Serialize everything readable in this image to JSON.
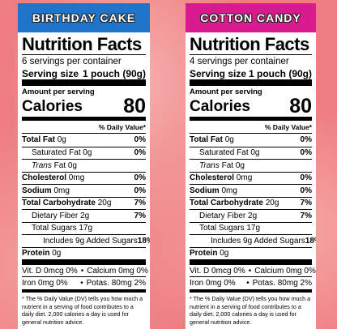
{
  "labels": [
    {
      "banner": "BIRTHDAY CAKE",
      "banner_color": "#1e74c8",
      "title": "Nutrition Facts",
      "servings": "6 servings per container",
      "serving_size_label": "Serving size",
      "serving_size_value": "1 pouch (90g)",
      "amount_per_serving": "Amount per serving",
      "calories_label": "Calories",
      "calories_value": "80",
      "daily_value_header": "% Daily Value*",
      "rows": [
        {
          "name": "Total Fat",
          "amount": "0g",
          "dv": "0%",
          "bold": true,
          "indent": 0
        },
        {
          "name": "Saturated Fat",
          "amount": "0g",
          "dv": "0%",
          "bold": false,
          "indent": 1
        },
        {
          "italic": "Trans",
          "name": "Fat",
          "amount": "0g",
          "bold": false,
          "indent": 1
        },
        {
          "name": "Cholesterol",
          "amount": "0mg",
          "dv": "0%",
          "bold": true,
          "indent": 0
        },
        {
          "name": "Sodium",
          "amount": "0mg",
          "dv": "0%",
          "bold": true,
          "indent": 0
        },
        {
          "name": "Total Carbohydrate",
          "amount": "20g",
          "dv": "7%",
          "bold": true,
          "indent": 0
        },
        {
          "name": "Dietary Fiber",
          "amount": "2g",
          "dv": "7%",
          "bold": false,
          "indent": 1
        },
        {
          "name": "Total Sugars",
          "amount": "17g",
          "bold": false,
          "indent": 1
        },
        {
          "name": "Includes 9g Added Sugars",
          "dv": "18%",
          "bold": false,
          "indent": 2
        },
        {
          "name": "Protein",
          "amount": "0g",
          "bold": true,
          "indent": 0
        }
      ],
      "vitamins": [
        [
          {
            "name": "Vit. D 0mcg",
            "dv": "0%"
          },
          {
            "name": "Calcium 0mg",
            "dv": "0%"
          }
        ],
        [
          {
            "name": "Iron 0mg",
            "dv": "0%"
          },
          {
            "name": "Potas. 80mg",
            "dv": "2%"
          }
        ]
      ],
      "footnote": "* The % Daily Value (DV) tells you how much a nutrient in a serving of food contributes to a daily diet. 2,000 calories a day is used for general nutrition advice."
    },
    {
      "banner": "COTTON CANDY",
      "banner_color": "#d81c8e",
      "title": "Nutrition Facts",
      "servings": "4 servings per container",
      "serving_size_label": "Serving size",
      "serving_size_value": "1 pouch (90g)",
      "amount_per_serving": "Amount per serving",
      "calories_label": "Calories",
      "calories_value": "80",
      "daily_value_header": "% Daily Value*",
      "rows": [
        {
          "name": "Total Fat",
          "amount": "0g",
          "dv": "0%",
          "bold": true,
          "indent": 0
        },
        {
          "name": "Saturated Fat",
          "amount": "0g",
          "dv": "0%",
          "bold": false,
          "indent": 1
        },
        {
          "italic": "Trans",
          "name": "Fat",
          "amount": "0g",
          "bold": false,
          "indent": 1
        },
        {
          "name": "Cholesterol",
          "amount": "0mg",
          "dv": "0%",
          "bold": true,
          "indent": 0
        },
        {
          "name": "Sodium",
          "amount": "0mg",
          "dv": "0%",
          "bold": true,
          "indent": 0
        },
        {
          "name": "Total Carbohydrate",
          "amount": "20g",
          "dv": "7%",
          "bold": true,
          "indent": 0
        },
        {
          "name": "Dietary Fiber",
          "amount": "2g",
          "dv": "7%",
          "bold": false,
          "indent": 1
        },
        {
          "name": "Total Sugars",
          "amount": "17g",
          "bold": false,
          "indent": 1
        },
        {
          "name": "Includes 9g Added Sugars",
          "dv": "18%",
          "bold": false,
          "indent": 2
        },
        {
          "name": "Protein",
          "amount": "0g",
          "bold": true,
          "indent": 0
        }
      ],
      "vitamins": [
        [
          {
            "name": "Vit. D 0mcg",
            "dv": "0%"
          },
          {
            "name": "Calcium 0mg",
            "dv": "0%"
          }
        ],
        [
          {
            "name": "Iron 0mg",
            "dv": "0%"
          },
          {
            "name": "Potas. 80mg",
            "dv": "2%"
          }
        ]
      ],
      "footnote": "* The % Daily Value (DV) tells you how much a nutrient in a serving of food contributes to a daily diet. 2,000 calories a day is used for general nutrition advice."
    }
  ]
}
